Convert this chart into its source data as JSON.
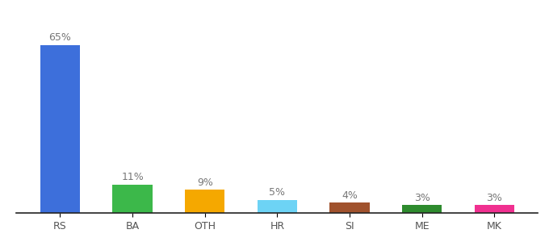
{
  "categories": [
    "RS",
    "BA",
    "OTH",
    "HR",
    "SI",
    "ME",
    "MK"
  ],
  "values": [
    65,
    11,
    9,
    5,
    4,
    3,
    3
  ],
  "bar_colors": [
    "#3d6fdb",
    "#3cb84a",
    "#f5a800",
    "#6dd3f5",
    "#a0522d",
    "#2e8b2e",
    "#f03090"
  ],
  "ylim": [
    0,
    75
  ],
  "bar_width": 0.55,
  "label_fontsize": 9,
  "tick_fontsize": 9,
  "background_color": "#ffffff",
  "label_color": "#777777",
  "tick_color": "#555555",
  "bottom_spine_color": "#222222"
}
